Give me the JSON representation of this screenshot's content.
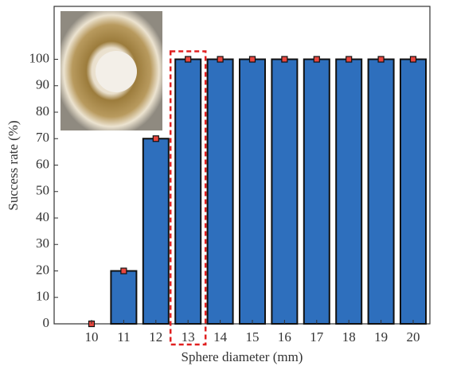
{
  "chart_data": {
    "type": "bar",
    "x_label": "Sphere diameter (mm)",
    "y_label": "Success rate (%)",
    "categories": [
      "10",
      "11",
      "12",
      "13",
      "14",
      "15",
      "16",
      "17",
      "18",
      "19",
      "20"
    ],
    "values": [
      0,
      20,
      70,
      100,
      100,
      100,
      100,
      100,
      100,
      100,
      100
    ],
    "color": "#2e6fbd",
    "marker_color": "#e8473f",
    "ylim": [
      0,
      120
    ],
    "yticks": [
      0,
      10,
      20,
      30,
      40,
      50,
      60,
      70,
      80,
      90,
      100
    ],
    "highlight": "13"
  }
}
